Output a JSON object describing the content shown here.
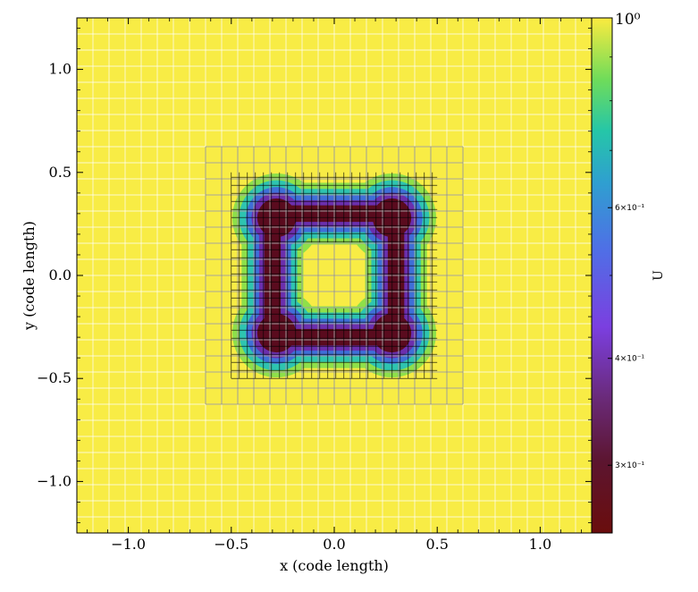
{
  "chart_data": {
    "type": "heatmap",
    "title": "",
    "xlabel": "x  (code length)",
    "ylabel": "y  (code length)",
    "xlim": [
      -1.25,
      1.25
    ],
    "ylim": [
      -1.25,
      1.25
    ],
    "x_ticks": [
      {
        "value": -1.0,
        "label": "−1.0"
      },
      {
        "value": -0.5,
        "label": "−0.5"
      },
      {
        "value": 0.0,
        "label": "0.0"
      },
      {
        "value": 0.5,
        "label": "0.5"
      },
      {
        "value": 1.0,
        "label": "1.0"
      }
    ],
    "y_ticks": [
      {
        "value": -1.0,
        "label": "−1.0"
      },
      {
        "value": -0.5,
        "label": "−0.5"
      },
      {
        "value": 0.0,
        "label": "0.0"
      },
      {
        "value": 0.5,
        "label": "0.5"
      },
      {
        "value": 1.0,
        "label": "1.0"
      }
    ],
    "colormap": "plasma-to-yellow (dark red → purple → blue → teal → green → yellow)",
    "background_value": 1.0,
    "colorbar": {
      "label": "U",
      "scale": "log",
      "range": [
        0.25,
        1.0
      ],
      "ticks": [
        {
          "value": 1.0,
          "label": "10⁰"
        },
        {
          "value": 0.6,
          "label": "6×10⁻¹"
        },
        {
          "value": 0.4,
          "label": "4×10⁻¹"
        },
        {
          "value": 0.3,
          "label": "3×10⁻¹"
        }
      ]
    },
    "structure": {
      "shape": "square ring with four lobed corners",
      "center": [
        0.0,
        0.0
      ],
      "ring_half_width": 0.3,
      "corner_offset": 0.28,
      "min_value": 0.26
    },
    "mesh": {
      "coarse_cell": 0.078125,
      "coarse_grid_extent": [
        -1.25,
        1.25
      ],
      "refined_level1_extent": [
        -0.625,
        0.625
      ],
      "refined_level1_cell": 0.078125,
      "refined_level2_cell": 0.0390625
    },
    "grid": true
  },
  "colors": {
    "background_yellow": "#f8ec45",
    "ring_dark": "#5a0b1e",
    "ring_purple": "#6b2fae",
    "ring_blue": "#3f6fd8",
    "ring_teal": "#2ec4b0",
    "ring_green": "#8ee04a"
  }
}
